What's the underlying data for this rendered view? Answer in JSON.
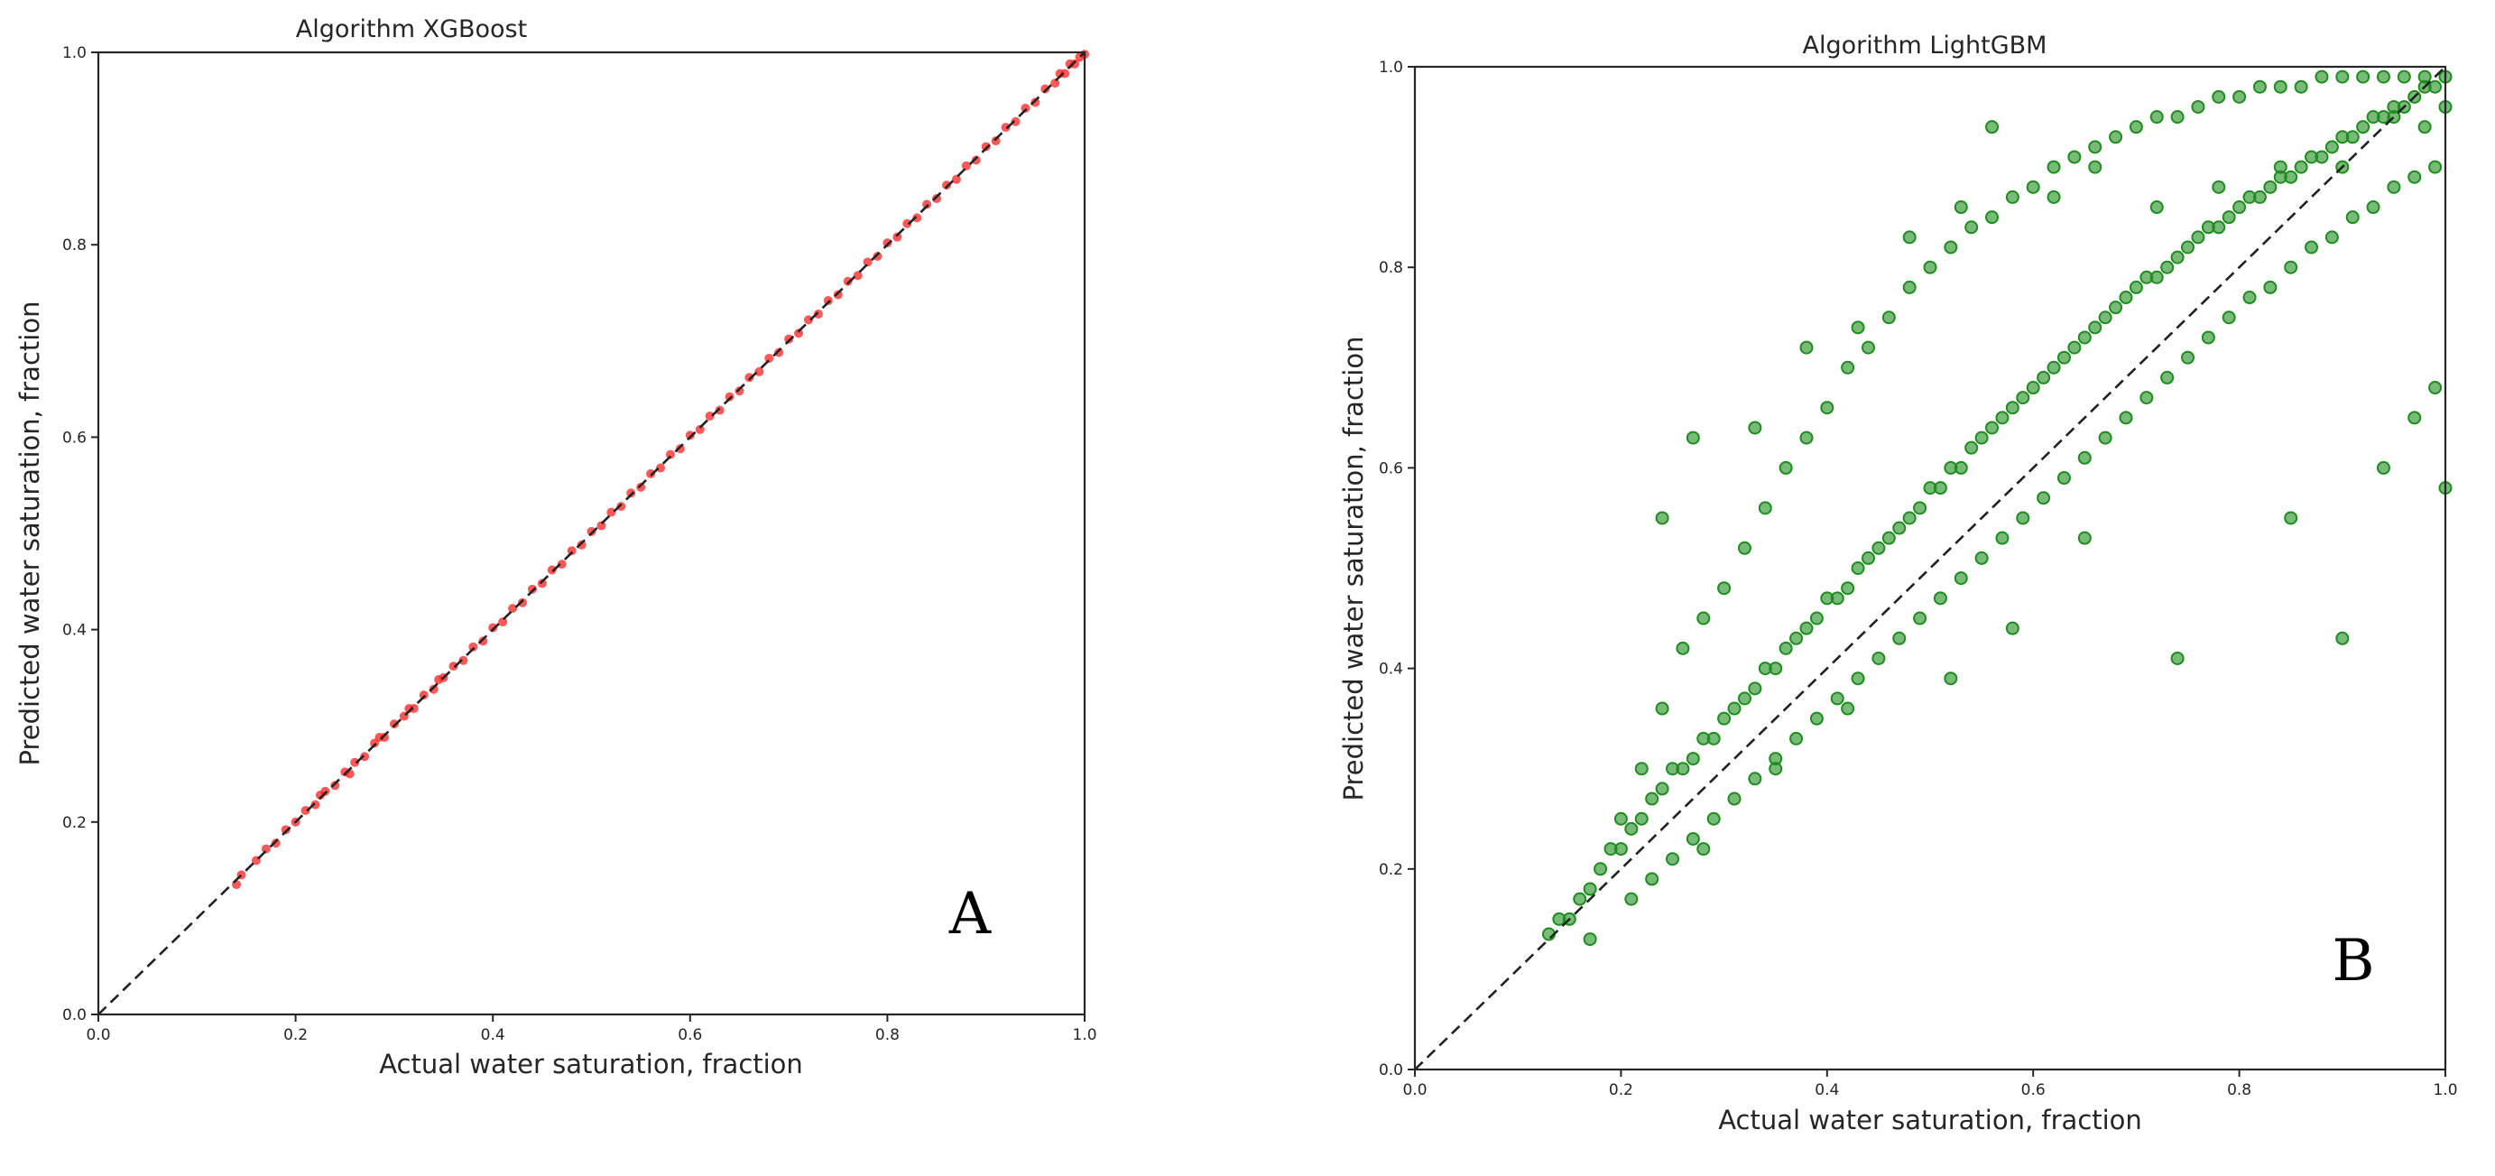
{
  "chart_data": [
    {
      "type": "scatter",
      "title": "Algorithm XGBoost",
      "xlabel": "Actual water saturation, fraction",
      "ylabel": "Predicted water saturation, fraction",
      "panel_label": "A",
      "xlim": [
        0.0,
        1.0
      ],
      "ylim": [
        0.0,
        1.0
      ],
      "xticks": [
        "0.0",
        "0.2",
        "0.4",
        "0.6",
        "0.8",
        "1.0"
      ],
      "yticks": [
        "0.0",
        "0.2",
        "0.4",
        "0.6",
        "0.8",
        "1.0"
      ],
      "grid": false,
      "legend": "none",
      "marker_color": "#ff2020",
      "reference_line": {
        "style": "dashed",
        "color": "#222222",
        "from": [
          0,
          0
        ],
        "to": [
          1,
          1
        ]
      },
      "series": [
        {
          "x": [
            0.14,
            0.145,
            0.16,
            0.17,
            0.18,
            0.19,
            0.2,
            0.21,
            0.22,
            0.225,
            0.23,
            0.24,
            0.25,
            0.255,
            0.26,
            0.27,
            0.28,
            0.285,
            0.29,
            0.3,
            0.31,
            0.315,
            0.32,
            0.33,
            0.34,
            0.345,
            0.35,
            0.36,
            0.37,
            0.38,
            0.39,
            0.4,
            0.41,
            0.42,
            0.43,
            0.44,
            0.45,
            0.46,
            0.47,
            0.48,
            0.49,
            0.5,
            0.51,
            0.52,
            0.53,
            0.54,
            0.55,
            0.56,
            0.57,
            0.58,
            0.59,
            0.6,
            0.61,
            0.62,
            0.63,
            0.64,
            0.65,
            0.66,
            0.67,
            0.68,
            0.69,
            0.7,
            0.71,
            0.72,
            0.73,
            0.74,
            0.75,
            0.76,
            0.77,
            0.78,
            0.79,
            0.8,
            0.81,
            0.82,
            0.83,
            0.84,
            0.85,
            0.86,
            0.87,
            0.88,
            0.89,
            0.9,
            0.91,
            0.92,
            0.93,
            0.94,
            0.95,
            0.96,
            0.97,
            0.975,
            0.98,
            0.985,
            0.99,
            0.995,
            1.0
          ],
          "y": [
            0.135,
            0.145,
            0.16,
            0.172,
            0.178,
            0.192,
            0.2,
            0.212,
            0.218,
            0.228,
            0.232,
            0.238,
            0.252,
            0.25,
            0.262,
            0.268,
            0.282,
            0.288,
            0.288,
            0.302,
            0.31,
            0.318,
            0.318,
            0.332,
            0.338,
            0.348,
            0.35,
            0.362,
            0.368,
            0.382,
            0.388,
            0.402,
            0.408,
            0.422,
            0.428,
            0.442,
            0.448,
            0.462,
            0.468,
            0.482,
            0.488,
            0.502,
            0.508,
            0.522,
            0.528,
            0.542,
            0.548,
            0.562,
            0.568,
            0.582,
            0.588,
            0.602,
            0.608,
            0.622,
            0.628,
            0.642,
            0.648,
            0.662,
            0.668,
            0.682,
            0.688,
            0.702,
            0.708,
            0.722,
            0.728,
            0.742,
            0.748,
            0.762,
            0.768,
            0.782,
            0.788,
            0.802,
            0.808,
            0.822,
            0.828,
            0.842,
            0.848,
            0.862,
            0.868,
            0.882,
            0.888,
            0.902,
            0.908,
            0.922,
            0.928,
            0.942,
            0.948,
            0.962,
            0.968,
            0.978,
            0.978,
            0.988,
            0.988,
            0.995,
            0.998
          ]
        }
      ]
    },
    {
      "type": "scatter",
      "title": "Algorithm LightGBM",
      "xlabel": "Actual water saturation, fraction",
      "ylabel": "Predicted water saturation, fraction",
      "panel_label": "B",
      "xlim": [
        0.0,
        1.0
      ],
      "ylim": [
        0.0,
        1.0
      ],
      "xticks": [
        "0.0",
        "0.2",
        "0.4",
        "0.6",
        "0.8",
        "1.0"
      ],
      "yticks": [
        "0.0",
        "0.2",
        "0.4",
        "0.6",
        "0.8",
        "1.0"
      ],
      "grid": false,
      "legend": "none",
      "marker_color": "#1e8c1e",
      "reference_line": {
        "style": "dashed",
        "color": "#222222",
        "from": [
          0,
          0
        ],
        "to": [
          1,
          1
        ]
      },
      "series": [
        {
          "x": [
            0.13,
            0.14,
            0.15,
            0.16,
            0.17,
            0.18,
            0.19,
            0.2,
            0.21,
            0.22,
            0.23,
            0.24,
            0.25,
            0.26,
            0.27,
            0.28,
            0.29,
            0.3,
            0.31,
            0.32,
            0.33,
            0.34,
            0.35,
            0.36,
            0.37,
            0.38,
            0.39,
            0.4,
            0.41,
            0.42,
            0.43,
            0.44,
            0.45,
            0.46,
            0.47,
            0.48,
            0.49,
            0.5,
            0.51,
            0.52,
            0.53,
            0.54,
            0.55,
            0.56,
            0.57,
            0.58,
            0.59,
            0.6,
            0.61,
            0.62,
            0.63,
            0.64,
            0.65,
            0.66,
            0.67,
            0.68,
            0.69,
            0.7,
            0.71,
            0.72,
            0.73,
            0.74,
            0.75,
            0.76,
            0.77,
            0.78,
            0.79,
            0.8,
            0.81,
            0.82,
            0.83,
            0.84,
            0.85,
            0.86,
            0.87,
            0.88,
            0.89,
            0.9,
            0.91,
            0.92,
            0.93,
            0.94,
            0.95,
            0.96,
            0.97,
            0.98,
            0.99,
            1.0,
            0.2,
            0.22,
            0.24,
            0.26,
            0.28,
            0.3,
            0.32,
            0.34,
            0.36,
            0.38,
            0.4,
            0.42,
            0.44,
            0.46,
            0.48,
            0.5,
            0.52,
            0.54,
            0.56,
            0.58,
            0.6,
            0.62,
            0.64,
            0.66,
            0.68,
            0.7,
            0.72,
            0.74,
            0.76,
            0.78,
            0.8,
            0.82,
            0.84,
            0.86,
            0.88,
            0.9,
            0.92,
            0.94,
            0.96,
            0.98,
            0.21,
            0.23,
            0.25,
            0.27,
            0.29,
            0.31,
            0.33,
            0.35,
            0.37,
            0.39,
            0.41,
            0.43,
            0.45,
            0.47,
            0.49,
            0.51,
            0.53,
            0.55,
            0.57,
            0.59,
            0.61,
            0.63,
            0.65,
            0.67,
            0.69,
            0.71,
            0.73,
            0.75,
            0.77,
            0.79,
            0.81,
            0.83,
            0.85,
            0.87,
            0.89,
            0.91,
            0.93,
            0.95,
            0.97,
            0.99,
            0.24,
            0.27,
            0.33,
            0.38,
            0.43,
            0.48,
            0.53,
            0.56,
            0.62,
            0.66,
            0.72,
            0.78,
            0.84,
            0.9,
            0.95,
            0.98,
            1.0,
            0.17,
            0.28,
            0.35,
            0.42,
            0.52,
            0.58,
            0.65,
            0.74,
            0.85,
            0.9,
            0.94,
            0.97,
            0.99,
            1.0
          ],
          "y": [
            0.135,
            0.15,
            0.15,
            0.17,
            0.18,
            0.2,
            0.22,
            0.22,
            0.24,
            0.25,
            0.27,
            0.28,
            0.3,
            0.3,
            0.31,
            0.33,
            0.33,
            0.35,
            0.36,
            0.37,
            0.38,
            0.4,
            0.4,
            0.42,
            0.43,
            0.44,
            0.45,
            0.47,
            0.47,
            0.48,
            0.5,
            0.51,
            0.52,
            0.53,
            0.54,
            0.55,
            0.56,
            0.58,
            0.58,
            0.6,
            0.6,
            0.62,
            0.63,
            0.64,
            0.65,
            0.66,
            0.67,
            0.68,
            0.69,
            0.7,
            0.71,
            0.72,
            0.73,
            0.74,
            0.75,
            0.76,
            0.77,
            0.78,
            0.79,
            0.79,
            0.8,
            0.81,
            0.82,
            0.83,
            0.84,
            0.84,
            0.85,
            0.86,
            0.87,
            0.87,
            0.88,
            0.89,
            0.89,
            0.9,
            0.91,
            0.91,
            0.92,
            0.93,
            0.93,
            0.94,
            0.95,
            0.95,
            0.96,
            0.96,
            0.97,
            0.98,
            0.98,
            0.99,
            0.25,
            0.3,
            0.36,
            0.42,
            0.45,
            0.48,
            0.52,
            0.56,
            0.6,
            0.63,
            0.66,
            0.7,
            0.72,
            0.75,
            0.78,
            0.8,
            0.82,
            0.84,
            0.85,
            0.87,
            0.88,
            0.9,
            0.91,
            0.92,
            0.93,
            0.94,
            0.95,
            0.95,
            0.96,
            0.97,
            0.97,
            0.98,
            0.98,
            0.98,
            0.99,
            0.99,
            0.99,
            0.99,
            0.99,
            0.99,
            0.17,
            0.19,
            0.21,
            0.23,
            0.25,
            0.27,
            0.29,
            0.31,
            0.33,
            0.35,
            0.37,
            0.39,
            0.41,
            0.43,
            0.45,
            0.47,
            0.49,
            0.51,
            0.53,
            0.55,
            0.57,
            0.59,
            0.61,
            0.63,
            0.65,
            0.67,
            0.69,
            0.71,
            0.73,
            0.75,
            0.77,
            0.78,
            0.8,
            0.82,
            0.83,
            0.85,
            0.86,
            0.88,
            0.89,
            0.9,
            0.55,
            0.63,
            0.64,
            0.72,
            0.74,
            0.83,
            0.86,
            0.94,
            0.87,
            0.9,
            0.86,
            0.88,
            0.9,
            0.9,
            0.95,
            0.94,
            0.96,
            0.13,
            0.22,
            0.3,
            0.36,
            0.39,
            0.44,
            0.53,
            0.41,
            0.55,
            0.43,
            0.6,
            0.65,
            0.68,
            0.58
          ]
        }
      ]
    }
  ]
}
